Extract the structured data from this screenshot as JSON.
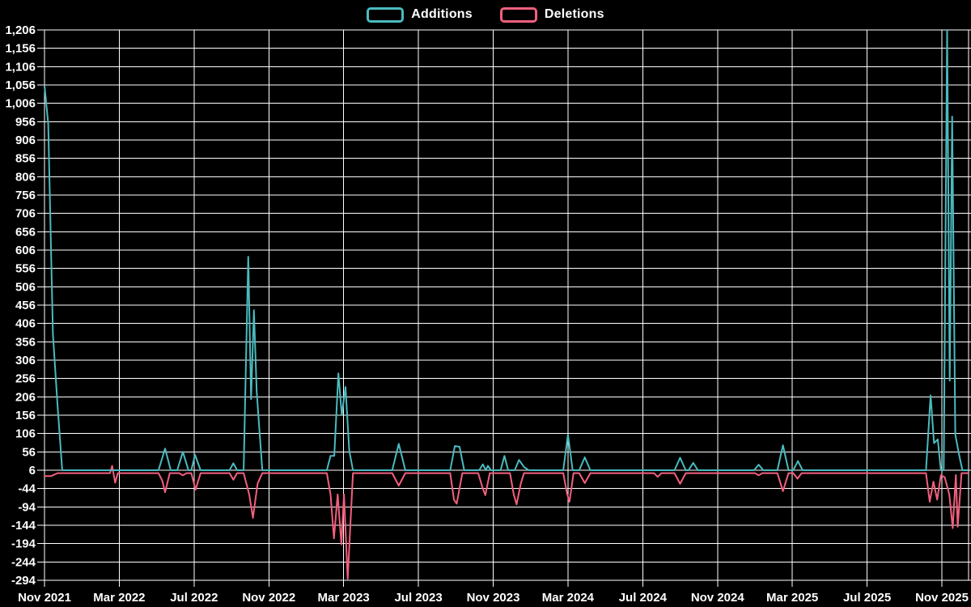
{
  "legend": {
    "items": [
      {
        "label": "Additions",
        "color": "#4abbbf"
      },
      {
        "label": "Deletions",
        "color": "#f2607e"
      }
    ]
  },
  "chart_data": {
    "type": "line",
    "title": "",
    "xlabel": "",
    "ylabel": "",
    "legend_position": "top",
    "grid": true,
    "x_unit": "months since Nov 2021",
    "x_axis": {
      "tick_labels": [
        "Nov 2021",
        "Mar 2022",
        "Jul 2022",
        "Nov 2022",
        "Mar 2023",
        "Jul 2023",
        "Nov 2023",
        "Mar 2024",
        "Jul 2024",
        "Nov 2024",
        "Mar 2025",
        "Jul 2025",
        "Nov 2025"
      ],
      "tick_months": [
        0,
        4,
        8,
        12,
        16,
        20,
        24,
        28,
        32,
        36,
        40,
        44,
        48
      ],
      "x_max_months": 49.4
    },
    "y_axis": {
      "min": -294,
      "max": 1206,
      "step": 50,
      "tick_labels": [
        "1,206",
        "1,156",
        "1,106",
        "1,056",
        "1,006",
        "956",
        "906",
        "856",
        "806",
        "756",
        "706",
        "656",
        "606",
        "556",
        "506",
        "456",
        "406",
        "356",
        "306",
        "256",
        "206",
        "156",
        "106",
        "56",
        "6",
        "-44",
        "-94",
        "-144",
        "-194",
        "-244",
        "-294"
      ]
    },
    "series": [
      {
        "name": "Deletions",
        "color": "#f2607e",
        "points": [
          [
            0,
            -10
          ],
          [
            0.35,
            -10
          ],
          [
            0.7,
            -2
          ],
          [
            3.5,
            -2
          ],
          [
            3.62,
            18
          ],
          [
            3.78,
            -28
          ],
          [
            3.92,
            -2
          ],
          [
            6.1,
            -2
          ],
          [
            6.3,
            -23
          ],
          [
            6.45,
            -54
          ],
          [
            6.7,
            -2
          ],
          [
            7.2,
            -2
          ],
          [
            7.4,
            -8
          ],
          [
            7.6,
            -2
          ],
          [
            7.85,
            -2
          ],
          [
            8.08,
            -47
          ],
          [
            8.35,
            -2
          ],
          [
            9.9,
            -2
          ],
          [
            10.1,
            -20
          ],
          [
            10.3,
            -2
          ],
          [
            10.65,
            -2
          ],
          [
            10.95,
            -60
          ],
          [
            11.15,
            -124
          ],
          [
            11.4,
            -30
          ],
          [
            11.65,
            -2
          ],
          [
            15.1,
            -2
          ],
          [
            15.3,
            -60
          ],
          [
            15.48,
            -180
          ],
          [
            15.68,
            -60
          ],
          [
            15.88,
            -196
          ],
          [
            16.02,
            -60
          ],
          [
            16.22,
            -290
          ],
          [
            16.5,
            -2
          ],
          [
            18.6,
            -2
          ],
          [
            18.95,
            -36
          ],
          [
            19.3,
            -2
          ],
          [
            21.7,
            -2
          ],
          [
            21.9,
            -74
          ],
          [
            22.05,
            -85
          ],
          [
            22.35,
            -2
          ],
          [
            23.2,
            -2
          ],
          [
            23.42,
            -40
          ],
          [
            23.58,
            -62
          ],
          [
            23.82,
            -2
          ],
          [
            24.9,
            -2
          ],
          [
            25.1,
            -60
          ],
          [
            25.25,
            -87
          ],
          [
            25.48,
            -30
          ],
          [
            25.65,
            -2
          ],
          [
            27.75,
            -2
          ],
          [
            27.95,
            -58
          ],
          [
            28.08,
            -80
          ],
          [
            28.3,
            -2
          ],
          [
            28.6,
            -2
          ],
          [
            28.9,
            -29
          ],
          [
            29.2,
            -2
          ],
          [
            32.6,
            -2
          ],
          [
            32.8,
            -12
          ],
          [
            33.0,
            -2
          ],
          [
            33.7,
            -2
          ],
          [
            34.0,
            -31
          ],
          [
            34.3,
            -2
          ],
          [
            38.0,
            -2
          ],
          [
            38.2,
            -8
          ],
          [
            38.4,
            -2
          ],
          [
            39.2,
            -2
          ],
          [
            39.5,
            -51
          ],
          [
            39.8,
            -2
          ],
          [
            40.05,
            -2
          ],
          [
            40.28,
            -17
          ],
          [
            40.5,
            -2
          ],
          [
            47.15,
            -2
          ],
          [
            47.35,
            -80
          ],
          [
            47.55,
            -25
          ],
          [
            47.75,
            -74
          ],
          [
            47.95,
            -8
          ],
          [
            48.15,
            -13
          ],
          [
            48.4,
            -60
          ],
          [
            48.58,
            -152
          ],
          [
            48.75,
            -7
          ],
          [
            48.85,
            -148
          ],
          [
            49.05,
            -2
          ],
          [
            49.38,
            -2
          ]
        ]
      },
      {
        "name": "Additions",
        "color": "#4abbbf",
        "points": [
          [
            0,
            1054
          ],
          [
            0.2,
            950
          ],
          [
            0.45,
            377
          ],
          [
            0.7,
            180
          ],
          [
            0.95,
            6
          ],
          [
            6.1,
            6
          ],
          [
            6.45,
            65
          ],
          [
            6.75,
            6
          ],
          [
            7.1,
            6
          ],
          [
            7.4,
            56
          ],
          [
            7.7,
            6
          ],
          [
            7.85,
            6
          ],
          [
            8.05,
            48
          ],
          [
            8.35,
            6
          ],
          [
            9.9,
            6
          ],
          [
            10.1,
            25
          ],
          [
            10.3,
            6
          ],
          [
            10.65,
            6
          ],
          [
            10.9,
            588
          ],
          [
            11.05,
            200
          ],
          [
            11.2,
            442
          ],
          [
            11.35,
            222
          ],
          [
            11.5,
            112
          ],
          [
            11.65,
            6
          ],
          [
            15.1,
            6
          ],
          [
            15.3,
            45
          ],
          [
            15.5,
            45
          ],
          [
            15.72,
            270
          ],
          [
            15.9,
            156
          ],
          [
            16.1,
            233
          ],
          [
            16.3,
            60
          ],
          [
            16.5,
            6
          ],
          [
            18.6,
            6
          ],
          [
            18.95,
            78
          ],
          [
            19.3,
            6
          ],
          [
            21.7,
            6
          ],
          [
            21.95,
            72
          ],
          [
            22.2,
            70
          ],
          [
            22.45,
            6
          ],
          [
            23.25,
            6
          ],
          [
            23.45,
            22
          ],
          [
            23.6,
            6
          ],
          [
            23.72,
            18
          ],
          [
            23.88,
            6
          ],
          [
            24.4,
            6
          ],
          [
            24.6,
            45
          ],
          [
            24.8,
            6
          ],
          [
            25.15,
            6
          ],
          [
            25.38,
            34
          ],
          [
            25.65,
            15
          ],
          [
            25.9,
            6
          ],
          [
            27.75,
            6
          ],
          [
            28.0,
            103
          ],
          [
            28.25,
            6
          ],
          [
            28.6,
            6
          ],
          [
            28.9,
            41
          ],
          [
            29.2,
            6
          ],
          [
            33.7,
            6
          ],
          [
            34.0,
            40
          ],
          [
            34.3,
            6
          ],
          [
            34.45,
            6
          ],
          [
            34.7,
            26
          ],
          [
            34.95,
            6
          ],
          [
            37.95,
            6
          ],
          [
            38.2,
            21
          ],
          [
            38.45,
            6
          ],
          [
            39.2,
            6
          ],
          [
            39.5,
            74
          ],
          [
            39.8,
            6
          ],
          [
            40.05,
            6
          ],
          [
            40.3,
            31
          ],
          [
            40.55,
            6
          ],
          [
            47.15,
            6
          ],
          [
            47.4,
            210
          ],
          [
            47.58,
            80
          ],
          [
            47.78,
            90
          ],
          [
            47.95,
            6
          ],
          [
            48.1,
            6
          ],
          [
            48.28,
            1206
          ],
          [
            48.42,
            250
          ],
          [
            48.55,
            970
          ],
          [
            48.72,
            103
          ],
          [
            48.92,
            48
          ],
          [
            49.1,
            6
          ],
          [
            49.38,
            6
          ]
        ]
      }
    ]
  }
}
